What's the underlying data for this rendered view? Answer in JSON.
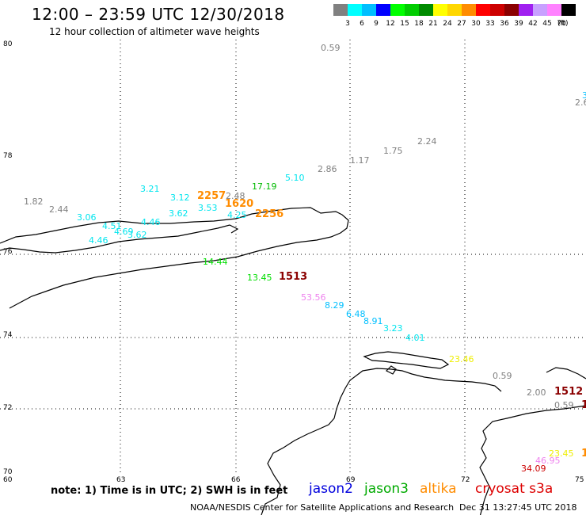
{
  "title": "12:00 – 23:59 UTC 12/30/2018",
  "subtitle": "12 hour collection of altimeter wave heights",
  "legend": {
    "unit": "(ft)",
    "bins": [
      {
        "label": "3",
        "color": "#808080"
      },
      {
        "label": "6",
        "color": "#00ffff"
      },
      {
        "label": "9",
        "color": "#00bfff"
      },
      {
        "label": "12",
        "color": "#0000ff"
      },
      {
        "label": "15",
        "color": "#00ff00"
      },
      {
        "label": "18",
        "color": "#00cd00"
      },
      {
        "label": "21",
        "color": "#008b00"
      },
      {
        "label": "24",
        "color": "#ffff00"
      },
      {
        "label": "27",
        "color": "#ffd700"
      },
      {
        "label": "30",
        "color": "#ff8c00"
      },
      {
        "label": "33",
        "color": "#ff0000"
      },
      {
        "label": "36",
        "color": "#cd0000"
      },
      {
        "label": "39",
        "color": "#8b0000"
      },
      {
        "label": "42",
        "color": "#a020f0"
      },
      {
        "label": "45",
        "color": "#c8a0ff"
      },
      {
        "label": "70",
        "color": "#ff82ff"
      },
      {
        "label": "",
        "color": "#000000"
      }
    ]
  },
  "map": {
    "lat_labels": [
      "80",
      "78",
      "76",
      "74",
      "72",
      "70"
    ],
    "lon_labels": [
      "60",
      "63",
      "66",
      "69",
      "72",
      "75"
    ],
    "wave_heights": [
      {
        "t": "0.59",
        "c": "#808080"
      },
      {
        "t": "3",
        "c": "#00bfff"
      },
      {
        "t": "2.6",
        "c": "#808080"
      },
      {
        "t": "2.24",
        "c": "#808080"
      },
      {
        "t": "1.75",
        "c": "#808080"
      },
      {
        "t": "1.17",
        "c": "#808080"
      },
      {
        "t": "2.86",
        "c": "#808080"
      },
      {
        "t": "5.10",
        "c": "#00e5ee"
      },
      {
        "t": "17.19",
        "c": "#00bb00"
      },
      {
        "t": "3.21",
        "c": "#00e5ee"
      },
      {
        "t": "3.12",
        "c": "#00e5ee"
      },
      {
        "t": "2.48",
        "c": "#808080"
      },
      {
        "t": "1.82",
        "c": "#808080"
      },
      {
        "t": "2.44",
        "c": "#808080"
      },
      {
        "t": "3.53",
        "c": "#00e5ee"
      },
      {
        "t": "3.62",
        "c": "#00e5ee"
      },
      {
        "t": "4.25",
        "c": "#00e5ee"
      },
      {
        "t": "3.06",
        "c": "#00e5ee"
      },
      {
        "t": "4.46",
        "c": "#00e5ee"
      },
      {
        "t": "4.51",
        "c": "#00e5ee"
      },
      {
        "t": "4.69",
        "c": "#00e5ee"
      },
      {
        "t": "3.62",
        "c": "#00e5ee"
      },
      {
        "t": "4.46",
        "c": "#00e5ee"
      },
      {
        "t": "14.44",
        "c": "#00dd00"
      },
      {
        "t": "13.45",
        "c": "#00dd00"
      },
      {
        "t": "53.56",
        "c": "#ee82ee"
      },
      {
        "t": "8.29",
        "c": "#00bfff"
      },
      {
        "t": "6.48",
        "c": "#00bfff"
      },
      {
        "t": "8.91",
        "c": "#00bfff"
      },
      {
        "t": "3.23",
        "c": "#00e5ee"
      },
      {
        "t": "4.01",
        "c": "#00e5ee"
      },
      {
        "t": "23.46",
        "c": "#eeee00"
      },
      {
        "t": "0.59",
        "c": "#808080"
      },
      {
        "t": "2.00",
        "c": "#808080"
      },
      {
        "t": "0.59",
        "c": "#808080"
      },
      {
        "t": "23.45",
        "c": "#eeee00"
      },
      {
        "t": "46.95",
        "c": "#ee82ee"
      },
      {
        "t": "34.09",
        "c": "#cc0000"
      }
    ],
    "pass_times": [
      {
        "t": "2257",
        "c": "#ff8c00"
      },
      {
        "t": "1620",
        "c": "#ff8c00"
      },
      {
        "t": "2256",
        "c": "#ff8c00"
      },
      {
        "t": "1513",
        "c": "#8b0000"
      },
      {
        "t": "1512",
        "c": "#8b0000"
      },
      {
        "t": "1",
        "c": "#8b0000"
      },
      {
        "t": "1",
        "c": "#ff8c00"
      }
    ]
  },
  "footer": {
    "note": "note: 1) Time is in UTC; 2) SWH is in feet",
    "satellites": [
      {
        "name": "jason2",
        "color": "#0000dd"
      },
      {
        "name": "jason3",
        "color": "#00aa00"
      },
      {
        "name": "altika",
        "color": "#ff8c00"
      },
      {
        "name": "cryosat s3a",
        "color": "#dd0000"
      }
    ],
    "credit": "NOAA/NESDIS Center for Satellite Applications and Research",
    "timestamp": "Dec 31 13:27:45 UTC 2018"
  }
}
